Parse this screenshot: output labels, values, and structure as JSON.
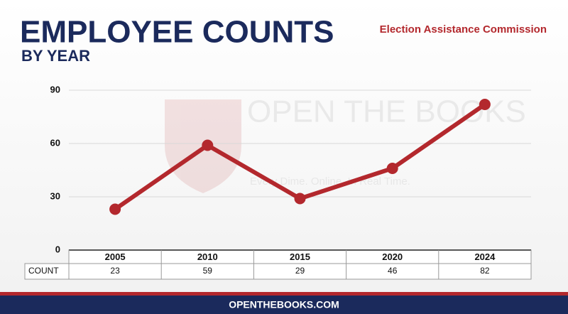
{
  "chart_data": {
    "type": "line",
    "title": "EMPLOYEE COUNTS",
    "subtitle": "BY YEAR",
    "source": "Election Assistance Commission",
    "watermark": {
      "name": "OPEN THE BOOKS",
      "tagline": "Every Dime. Online. In Real Time."
    },
    "categories": [
      "2005",
      "2010",
      "2015",
      "2020",
      "2024"
    ],
    "values": [
      23,
      59,
      29,
      46,
      82
    ],
    "color": "#b3282d",
    "table_row_label": "COUNT",
    "ylim": [
      0,
      90
    ],
    "yticks": [
      0,
      30,
      60,
      90
    ],
    "grid": true,
    "footer": "OPENTHEBOOKS.COM"
  }
}
